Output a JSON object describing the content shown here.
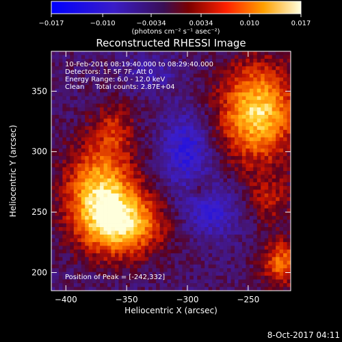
{
  "chart_data": {
    "type": "heatmap",
    "title": "Reconstructed RHESSI Image",
    "xlabel": "Heliocentric X (arcsec)",
    "ylabel": "Heliocentric Y (arcsec)",
    "xlim": [
      -412,
      -215
    ],
    "ylim": [
      185,
      383
    ],
    "x_ticks": [
      -400,
      -350,
      -300,
      -250
    ],
    "y_ticks": [
      200,
      250,
      300,
      350
    ],
    "colorbar": {
      "range": [
        -0.017,
        0.017
      ],
      "ticks": [
        "-0.017",
        "-0.010",
        "-0.0034",
        "0.0034",
        "0.010",
        "0.017"
      ],
      "tick_values": [
        -0.017,
        -0.01,
        -0.0034,
        0.0034,
        0.01,
        0.017
      ],
      "unit_label": "(photons cm⁻² s⁻¹ asec⁻²)"
    },
    "annotations": [
      "10-Feb-2016 08:19:40.000 to 08:29:40.000",
      "Detectors: 1F 5F 7F, Att 0",
      "Energy Range: 6.0 - 12.0 keV",
      "Clean     Total counts: 2.87E+04"
    ],
    "peak_label": "Position of Peak = [-242,332]",
    "peak_position": [
      -242,
      332
    ],
    "grid": false,
    "components": [
      {
        "cx": -372,
        "cy": 265,
        "sx": 20,
        "sy": 28,
        "amp": 0.016
      },
      {
        "cx": -350,
        "cy": 240,
        "sx": 22,
        "sy": 18,
        "amp": 0.014
      },
      {
        "cx": -360,
        "cy": 320,
        "sx": 12,
        "sy": 16,
        "amp": 0.006
      },
      {
        "cx": -242,
        "cy": 332,
        "sx": 22,
        "sy": 28,
        "amp": 0.017
      },
      {
        "cx": -232,
        "cy": 260,
        "sx": 14,
        "sy": 14,
        "amp": 0.006
      },
      {
        "cx": -222,
        "cy": 208,
        "sx": 12,
        "sy": 14,
        "amp": 0.011
      },
      {
        "cx": -290,
        "cy": 270,
        "sx": 6,
        "sy": 6,
        "amp": 0.005
      },
      {
        "cx": -300,
        "cy": 300,
        "sx": 14,
        "sy": 22,
        "amp": -0.008
      },
      {
        "cx": -280,
        "cy": 250,
        "sx": 16,
        "sy": 14,
        "amp": -0.007
      },
      {
        "cx": -330,
        "cy": 365,
        "sx": 16,
        "sy": 10,
        "amp": -0.004
      }
    ]
  },
  "footer": {
    "timestamp": "8-Oct-2017 04:11"
  }
}
